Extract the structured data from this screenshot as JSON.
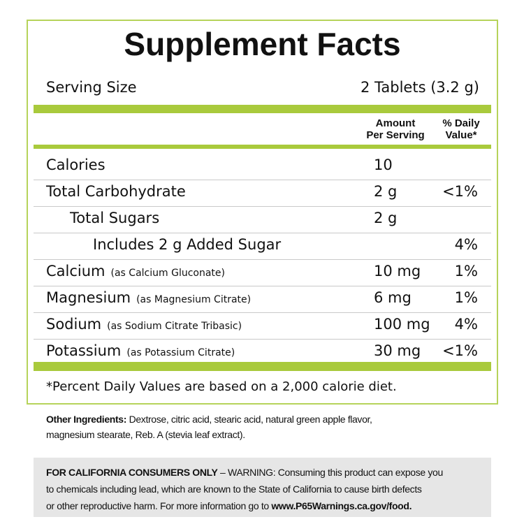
{
  "title": "Supplement Facts",
  "serving_size": {
    "label": "Serving Size",
    "value": "2 Tablets (3.2 g)"
  },
  "columns": {
    "amount": [
      "Amount",
      "Per Serving"
    ],
    "daily_value": [
      "% Daily",
      "Value*"
    ]
  },
  "rows": [
    {
      "name": "Calories",
      "amount": "10"
    },
    {
      "name": "Total Carbohydrate",
      "amount": "2 g",
      "daily_value": "<1%"
    },
    {
      "name": "Total Sugars",
      "amount": "2 g"
    },
    {
      "name": "Includes 2 g Added Sugar",
      "daily_value": "4%"
    },
    {
      "name": "Calcium",
      "note": "(as Calcium Gluconate)",
      "amount": "10 mg",
      "daily_value": "1%"
    },
    {
      "name": "Magnesium",
      "note": "(as Magnesium Citrate)",
      "amount": "6 mg",
      "daily_value": "1%"
    },
    {
      "name": "Sodium",
      "note": "(as Sodium Citrate Tribasic)",
      "amount": "100 mg",
      "daily_value": "4%"
    },
    {
      "name": "Potassium",
      "note": "(as Potassium Citrate)",
      "amount": "30 mg",
      "daily_value": "<1%"
    }
  ],
  "footnote": "*Percent Daily Values are based on a 2,000 calorie diet.",
  "other_ingredients": {
    "label": "Other Ingredients:",
    "lines": [
      "Dextrose, citric acid, stearic acid, natural green apple flavor,",
      "magnesium stearate, Reb. A (stevia leaf extract)."
    ]
  },
  "warning": {
    "label": "FOR CALIFORNIA CONSUMERS ONLY",
    "lines": [
      "– WARNING: Consuming this product can expose you",
      "to chemicals including lead, which are known to the State of California to cause birth defects",
      "or other reproductive harm. For more information go to"
    ],
    "link": "www.P65Warnings.ca.gov/food."
  }
}
